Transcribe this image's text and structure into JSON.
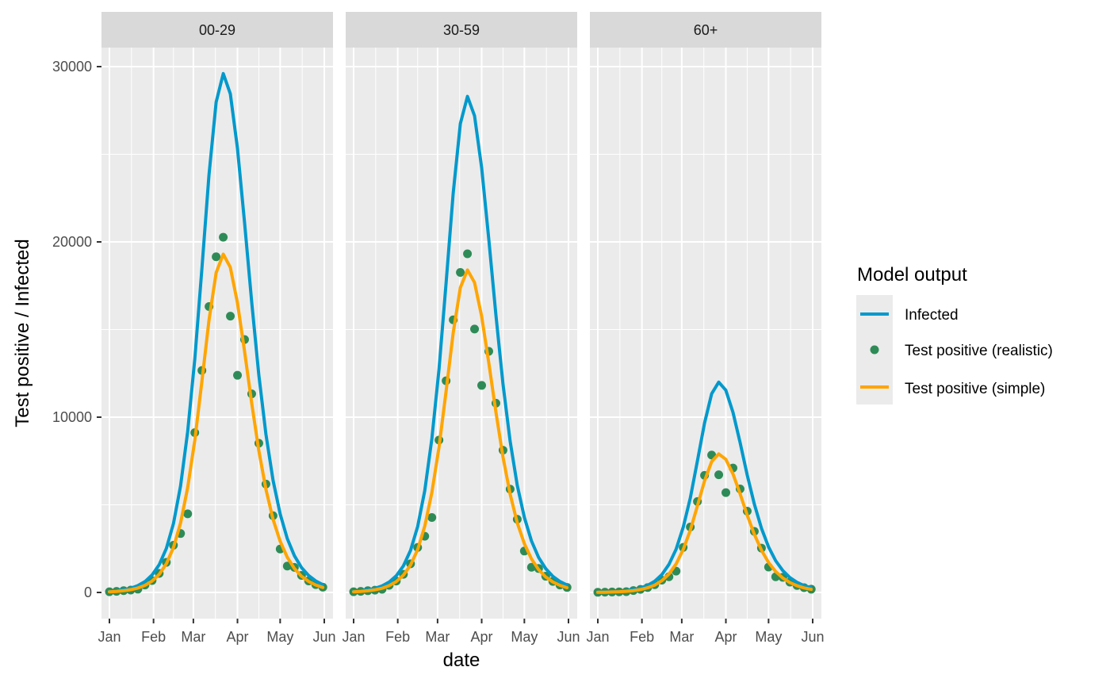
{
  "chart_data": {
    "type": "line",
    "xlabel": "date",
    "ylabel": "Test positive / Infected",
    "ylim": [
      -1500,
      32500
    ],
    "yticks": [
      0,
      10000,
      20000,
      30000
    ],
    "ytick_labels": [
      "0",
      "10000",
      "20000",
      "30000"
    ],
    "xticks": [
      "Jan 1",
      "Feb 1",
      "Mar 1",
      "Apr 1",
      "May 1",
      "Jun 1"
    ],
    "xtick_labels": [
      "Jan",
      "Feb",
      "Mar",
      "Apr",
      "May",
      "Jun"
    ],
    "grid": true,
    "legend": {
      "title": "Model output",
      "placement": "right",
      "entries": [
        {
          "label": "Infected",
          "kind": "line",
          "color": "#0099cc"
        },
        {
          "label": "Test positive (realistic)",
          "kind": "point",
          "color": "#2e8b57"
        },
        {
          "label": "Test positive (simple)",
          "kind": "line",
          "color": "#ffa500"
        }
      ]
    },
    "x": [
      "Jan 1",
      "Jan 6",
      "Jan 11",
      "Jan 16",
      "Jan 21",
      "Jan 26",
      "Jan 31",
      "Feb 5",
      "Feb 10",
      "Feb 15",
      "Feb 20",
      "Feb 25",
      "Mar 2",
      "Mar 7",
      "Mar 12",
      "Mar 17",
      "Mar 22",
      "Mar 27",
      "Apr 1",
      "Apr 6",
      "Apr 11",
      "Apr 16",
      "Apr 21",
      "Apr 26",
      "May 1",
      "May 6",
      "May 11",
      "May 16",
      "May 21",
      "May 26",
      "May 31"
    ],
    "facets": [
      {
        "label": "00-29",
        "series": [
          {
            "name": "Infected",
            "values": [
              58,
              94,
              151,
              242,
              388,
              622,
              995,
              1584,
              2507,
              3937,
              6068,
              9176,
              13320,
              18500,
              23828,
              27972,
              29600,
              28446,
              25338,
              21075,
              16546,
              12432,
              9028,
              6394,
              4470,
              3078,
              2093,
              1418,
              962,
              654,
              438
            ]
          },
          {
            "name": "Test positive (realistic)",
            "values": [
              40,
              64,
              103,
              134,
              190,
              426,
              681,
              1085,
              1717,
              2695,
              3363,
              4487,
              9119,
              12665,
              16313,
              19150,
              20265,
              15765,
              12390,
              14428,
              11327,
              8511,
              6180,
              4377,
              2477,
              1505,
              1433,
              971,
              658,
              447,
              300
            ]
          },
          {
            "name": "Test positive (simple)",
            "values": [
              38,
              61,
              98,
              158,
              253,
              406,
              649,
              1033,
              1635,
              2567,
              3956,
              5983,
              8685,
              12062,
              15536,
              18238,
              19300,
              18547,
              16520,
              13741,
              10788,
              8106,
              5886,
              4169,
              2914,
              2007,
              1365,
              925,
              627,
              426,
              286
            ]
          }
        ]
      },
      {
        "label": "30-59",
        "series": [
          {
            "name": "Infected",
            "values": [
              55,
              90,
              144,
              231,
              371,
              595,
              951,
              1514,
              2397,
              3764,
              5802,
              8773,
              12735,
              17688,
              22782,
              26744,
              28300,
              27197,
              24225,
              20150,
              15819,
              11886,
              8632,
              6113,
              4274,
              2943,
              2001,
              1356,
              920,
              625,
              419
            ]
          },
          {
            "name": "Test positive (realistic)",
            "values": [
              38,
              61,
              99,
              128,
              181,
              406,
              649,
              1034,
              1636,
              2569,
              3206,
              4278,
              8694,
              12075,
              15553,
              18257,
              19320,
              15030,
              11813,
              13755,
              10799,
              8114,
              5893,
              4174,
              2362,
              1435,
              1366,
              925,
              628,
              427,
              286
            ]
          },
          {
            "name": "Test positive (simple)",
            "values": [
              36,
              58,
              94,
              150,
              241,
              387,
              618,
              985,
              1558,
              2447,
              3772,
              5704,
              8280,
              11500,
              14812,
              17388,
              18400,
              17682,
              15750,
              13100,
              10285,
              7728,
              5612,
              3975,
              2779,
              1913,
              1301,
              881,
              598,
              407,
              272
            ]
          }
        ]
      },
      {
        "label": "60+",
        "series": [
          {
            "name": "Infected",
            "values": [
              14,
              24,
              38,
              61,
              98,
              157,
              252,
              403,
              642,
              1016,
              1596,
              2460,
              3720,
              5400,
              7500,
              9660,
              11340,
              12000,
              11532,
              10272,
              8544,
              6708,
              5040,
              3660,
              2592,
              1812,
              1248,
              848,
              575,
              390,
              265
            ]
          },
          {
            "name": "Test positive (realistic)",
            "values": [
              9,
              16,
              26,
              34,
              48,
              108,
              174,
              278,
              444,
              702,
              893,
              1215,
              2571,
              3733,
              5185,
              6678,
              7839,
              6715,
              5694,
              7100,
              5906,
              4637,
              3484,
              2531,
              1450,
              895,
              863,
              587,
              397,
              270,
              184
            ]
          },
          {
            "name": "Test positive (simple)",
            "values": [
              9,
              15,
              25,
              40,
              64,
              103,
              166,
              265,
              423,
              669,
              1051,
              1620,
              2449,
              3555,
              4938,
              6360,
              7466,
              7900,
              7592,
              6762,
              5625,
              4416,
              3318,
              2410,
              1706,
              1193,
              822,
              559,
              378,
              257,
              175
            ]
          }
        ]
      }
    ]
  }
}
